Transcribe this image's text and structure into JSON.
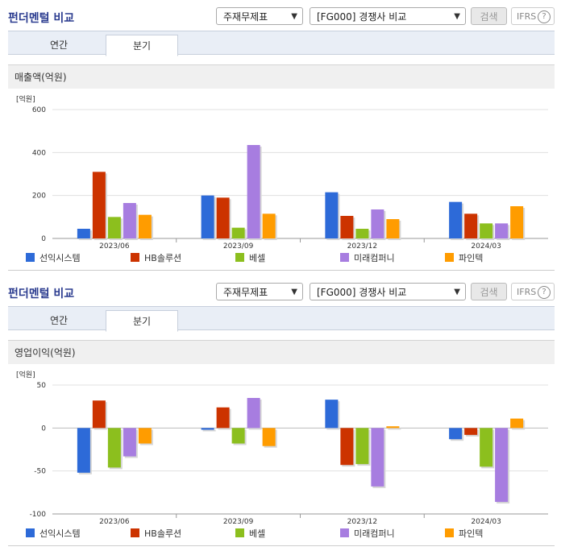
{
  "panels": [
    {
      "title": "펀더멘털 비교",
      "select1": "주재무제표",
      "select2": "[FG000] 경쟁사 비교",
      "search_label": "검색",
      "ifrs_label": "IFRS",
      "ifrs_help": "?",
      "tabs": [
        {
          "label": "연간"
        },
        {
          "label": "분기"
        }
      ],
      "section_title": "매출액(억원)"
    },
    {
      "title": "펀더멘털 비교",
      "select1": "주재무제표",
      "select2": "[FG000] 경쟁사 비교",
      "search_label": "검색",
      "ifrs_label": "IFRS",
      "ifrs_help": "?",
      "tabs": [
        {
          "label": "연간"
        },
        {
          "label": "분기"
        }
      ],
      "section_title": "영업이익(억원)"
    }
  ],
  "colors": [
    "#2d6ad8",
    "#cc3300",
    "#8cbf1e",
    "#a77de0",
    "#ff9c00"
  ],
  "chart_data": [
    {
      "type": "bar",
      "unit_label": "[억원]",
      "categories": [
        "2023/06",
        "2023/09",
        "2023/12",
        "2024/03"
      ],
      "ylim": [
        0,
        600
      ],
      "yticks": [
        0,
        200,
        400,
        600
      ],
      "series": [
        {
          "name": "선익시스템",
          "values": [
            45,
            200,
            215,
            170
          ]
        },
        {
          "name": "HB솔루션",
          "values": [
            310,
            190,
            105,
            115
          ]
        },
        {
          "name": "베셀",
          "values": [
            100,
            50,
            45,
            70
          ]
        },
        {
          "name": "미래컴퍼니",
          "values": [
            165,
            435,
            135,
            70
          ]
        },
        {
          "name": "파인텍",
          "values": [
            110,
            115,
            90,
            150
          ]
        }
      ],
      "grid": true,
      "legend": "bottom"
    },
    {
      "type": "bar",
      "unit_label": "[억원]",
      "categories": [
        "2023/06",
        "2023/09",
        "2023/12",
        "2024/03"
      ],
      "ylim": [
        -100,
        50
      ],
      "yticks": [
        -100,
        -50,
        0,
        50
      ],
      "series": [
        {
          "name": "선익시스템",
          "values": [
            -52,
            -2,
            33,
            -13
          ]
        },
        {
          "name": "HB솔루션",
          "values": [
            32,
            24,
            -43,
            -8
          ]
        },
        {
          "name": "베셀",
          "values": [
            -46,
            -18,
            -42,
            -45
          ]
        },
        {
          "name": "미래컴퍼니",
          "values": [
            -33,
            35,
            -68,
            -86
          ]
        },
        {
          "name": "파인텍",
          "values": [
            -18,
            -21,
            2,
            11
          ]
        }
      ],
      "grid": true,
      "legend": "bottom"
    }
  ]
}
